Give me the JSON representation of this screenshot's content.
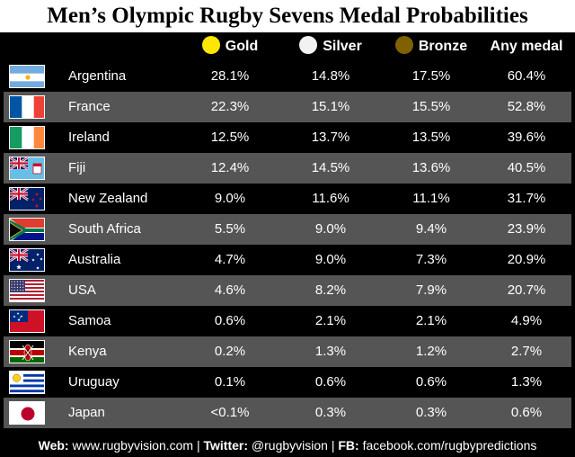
{
  "title": "Men’s Olympic Rugby Sevens Medal Probabilities",
  "columns": {
    "gold": "Gold",
    "silver": "Silver",
    "bronze": "Bronze",
    "any": "Any medal"
  },
  "colors": {
    "gold": "#FFE600",
    "silver": "#F2F2F2",
    "bronze": "#806000",
    "row_dark": "#000000",
    "row_grey": "#555555"
  },
  "chart_data": {
    "type": "table",
    "title": "Men’s Olympic Rugby Sevens Medal Probabilities",
    "columns": [
      "Gold",
      "Silver",
      "Bronze",
      "Any medal"
    ],
    "rows": [
      {
        "team": "Argentina",
        "flag": "argentina-flag-icon",
        "gold": "28.1%",
        "silver": "14.8%",
        "bronze": "17.5%",
        "any": "60.4%"
      },
      {
        "team": "France",
        "flag": "france-flag-icon",
        "gold": "22.3%",
        "silver": "15.1%",
        "bronze": "15.5%",
        "any": "52.8%"
      },
      {
        "team": "Ireland",
        "flag": "ireland-flag-icon",
        "gold": "12.5%",
        "silver": "13.7%",
        "bronze": "13.5%",
        "any": "39.6%"
      },
      {
        "team": "Fiji",
        "flag": "fiji-flag-icon",
        "gold": "12.4%",
        "silver": "14.5%",
        "bronze": "13.6%",
        "any": "40.5%"
      },
      {
        "team": "New Zealand",
        "flag": "new-zealand-flag-icon",
        "gold": "9.0%",
        "silver": "11.6%",
        "bronze": "11.1%",
        "any": "31.7%"
      },
      {
        "team": "South Africa",
        "flag": "south-africa-flag-icon",
        "gold": "5.5%",
        "silver": "9.0%",
        "bronze": "9.4%",
        "any": "23.9%"
      },
      {
        "team": "Australia",
        "flag": "australia-flag-icon",
        "gold": "4.7%",
        "silver": "9.0%",
        "bronze": "7.3%",
        "any": "20.9%"
      },
      {
        "team": "USA",
        "flag": "usa-flag-icon",
        "gold": "4.6%",
        "silver": "8.2%",
        "bronze": "7.9%",
        "any": "20.7%"
      },
      {
        "team": "Samoa",
        "flag": "samoa-flag-icon",
        "gold": "0.6%",
        "silver": "2.1%",
        "bronze": "2.1%",
        "any": "4.9%"
      },
      {
        "team": "Kenya",
        "flag": "kenya-flag-icon",
        "gold": "0.2%",
        "silver": "1.3%",
        "bronze": "1.2%",
        "any": "2.7%"
      },
      {
        "team": "Uruguay",
        "flag": "uruguay-flag-icon",
        "gold": "0.1%",
        "silver": "0.6%",
        "bronze": "0.6%",
        "any": "1.3%"
      },
      {
        "team": "Japan",
        "flag": "japan-flag-icon",
        "gold": "<0.1%",
        "silver": "0.3%",
        "bronze": "0.3%",
        "any": "0.6%"
      }
    ]
  },
  "footer": {
    "web_label": "Web:",
    "web_value": "www.rugbyvision.com",
    "sep1": "|",
    "twitter_label": "Twitter:",
    "twitter_value": "@rugbyvision",
    "sep2": "|",
    "fb_label": "FB:",
    "fb_value": "facebook.com/rugbypredictions"
  }
}
